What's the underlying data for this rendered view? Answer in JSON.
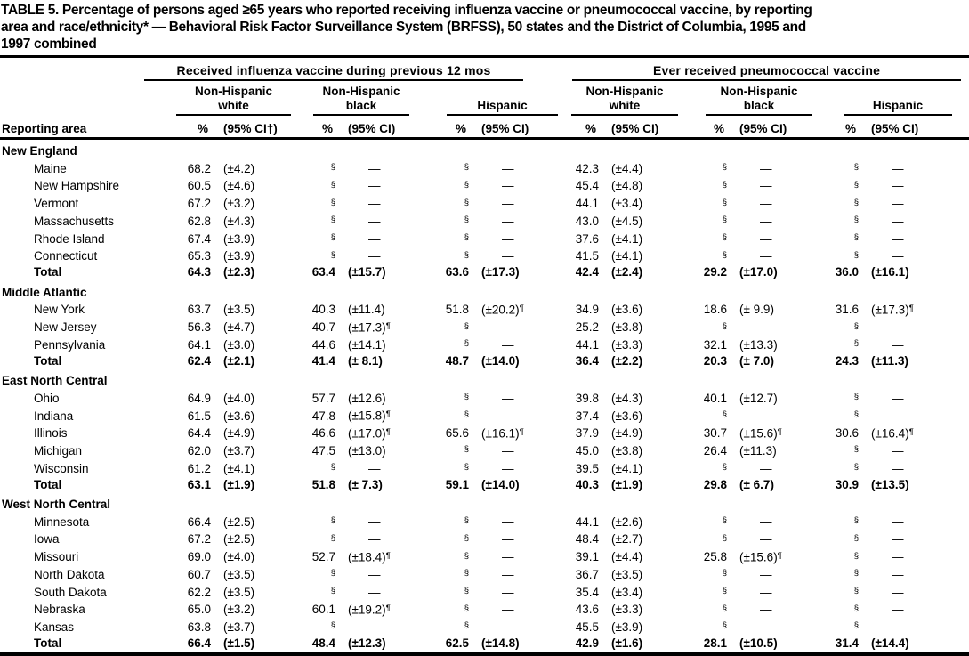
{
  "title": {
    "lines": [
      "TABLE 5. Percentage of persons aged ≥65 years who reported receiving influenza vaccine or pneumococcal vaccine, by reporting",
      "area and race/ethnicity* — Behavioral Risk Factor Surveillance System (BRFSS), 50 states and the District of Columbia, 1995 and",
      "1997 combined"
    ]
  },
  "table": {
    "row_label_header": "Reporting area",
    "pct_header": "%",
    "ci_header": "(95% CI)",
    "ci_header_first": "(95% CI†)",
    "footnote_symbols": {
      "small_sample": "§",
      "wide_ci": "¶",
      "no_data": "—"
    },
    "groups": [
      {
        "label": "Received influenza vaccine during previous 12 mos",
        "subgroups": [
          [
            "Non-Hispanic",
            "white"
          ],
          [
            "Non-Hispanic",
            "black"
          ],
          [
            "Hispanic"
          ]
        ]
      },
      {
        "label": "Ever received pneumococcal vaccine",
        "subgroups": [
          [
            "Non-Hispanic",
            "white"
          ],
          [
            "Non-Hispanic",
            "black"
          ],
          [
            "Hispanic"
          ]
        ]
      }
    ],
    "sections": [
      {
        "name": "New England",
        "rows": [
          {
            "area": "Maine",
            "cells": [
              "68.2",
              "(±4.2)",
              "§",
              "—",
              "§",
              "—",
              "42.3",
              "(±4.4)",
              "§",
              "—",
              "§",
              "—"
            ]
          },
          {
            "area": "New Hampshire",
            "cells": [
              "60.5",
              "(±4.6)",
              "§",
              "—",
              "§",
              "—",
              "45.4",
              "(±4.8)",
              "§",
              "—",
              "§",
              "—"
            ]
          },
          {
            "area": "Vermont",
            "cells": [
              "67.2",
              "(±3.2)",
              "§",
              "—",
              "§",
              "—",
              "44.1",
              "(±3.4)",
              "§",
              "—",
              "§",
              "—"
            ]
          },
          {
            "area": "Massachusetts",
            "cells": [
              "62.8",
              "(±4.3)",
              "§",
              "—",
              "§",
              "—",
              "43.0",
              "(±4.5)",
              "§",
              "—",
              "§",
              "—"
            ]
          },
          {
            "area": "Rhode Island",
            "cells": [
              "67.4",
              "(±3.9)",
              "§",
              "—",
              "§",
              "—",
              "37.6",
              "(±4.1)",
              "§",
              "—",
              "§",
              "—"
            ]
          },
          {
            "area": "Connecticut",
            "cells": [
              "65.3",
              "(±3.9)",
              "§",
              "—",
              "§",
              "—",
              "41.5",
              "(±4.1)",
              "§",
              "—",
              "§",
              "—"
            ]
          },
          {
            "area": "Total",
            "bold": true,
            "cells": [
              "64.3",
              "(±2.3)",
              "63.4",
              "(±15.7)",
              "63.6",
              "(±17.3)",
              "42.4",
              "(±2.4)",
              "29.2",
              "(±17.0)",
              "36.0",
              "(±16.1)"
            ]
          }
        ]
      },
      {
        "name": "Middle Atlantic",
        "rows": [
          {
            "area": "New York",
            "cells": [
              "63.7",
              "(±3.5)",
              "40.3",
              "(±11.4)",
              "51.8",
              "(±20.2)¶",
              "34.9",
              "(±3.6)",
              "18.6",
              "(± 9.9)",
              "31.6",
              "(±17.3)¶"
            ]
          },
          {
            "area": "New Jersey",
            "cells": [
              "56.3",
              "(±4.7)",
              "40.7",
              "(±17.3)¶",
              "§",
              "—",
              "25.2",
              "(±3.8)",
              "§",
              "—",
              "§",
              "—"
            ]
          },
          {
            "area": "Pennsylvania",
            "cells": [
              "64.1",
              "(±3.0)",
              "44.6",
              "(±14.1)",
              "§",
              "—",
              "44.1",
              "(±3.3)",
              "32.1",
              "(±13.3)",
              "§",
              "—"
            ]
          },
          {
            "area": "Total",
            "bold": true,
            "cells": [
              "62.4",
              "(±2.1)",
              "41.4",
              "(± 8.1)",
              "48.7",
              "(±14.0)",
              "36.4",
              "(±2.2)",
              "20.3",
              "(± 7.0)",
              "24.3",
              "(±11.3)"
            ]
          }
        ]
      },
      {
        "name": "East North Central",
        "rows": [
          {
            "area": "Ohio",
            "cells": [
              "64.9",
              "(±4.0)",
              "57.7",
              "(±12.6)",
              "§",
              "—",
              "39.8",
              "(±4.3)",
              "40.1",
              "(±12.7)",
              "§",
              "—"
            ]
          },
          {
            "area": "Indiana",
            "cells": [
              "61.5",
              "(±3.6)",
              "47.8",
              "(±15.8)¶",
              "§",
              "—",
              "37.4",
              "(±3.6)",
              "§",
              "—",
              "§",
              "—"
            ]
          },
          {
            "area": "Illinois",
            "cells": [
              "64.4",
              "(±4.9)",
              "46.6",
              "(±17.0)¶",
              "65.6",
              "(±16.1)¶",
              "37.9",
              "(±4.9)",
              "30.7",
              "(±15.6)¶",
              "30.6",
              "(±16.4)¶"
            ]
          },
          {
            "area": "Michigan",
            "cells": [
              "62.0",
              "(±3.7)",
              "47.5",
              "(±13.0)",
              "§",
              "—",
              "45.0",
              "(±3.8)",
              "26.4",
              "(±11.3)",
              "§",
              "—"
            ]
          },
          {
            "area": "Wisconsin",
            "cells": [
              "61.2",
              "(±4.1)",
              "§",
              "—",
              "§",
              "—",
              "39.5",
              "(±4.1)",
              "§",
              "—",
              "§",
              "—"
            ]
          },
          {
            "area": "Total",
            "bold": true,
            "cells": [
              "63.1",
              "(±1.9)",
              "51.8",
              "(± 7.3)",
              "59.1",
              "(±14.0)",
              "40.3",
              "(±1.9)",
              "29.8",
              "(± 6.7)",
              "30.9",
              "(±13.5)"
            ]
          }
        ]
      },
      {
        "name": "West North Central",
        "rows": [
          {
            "area": "Minnesota",
            "cells": [
              "66.4",
              "(±2.5)",
              "§",
              "—",
              "§",
              "—",
              "44.1",
              "(±2.6)",
              "§",
              "—",
              "§",
              "—"
            ]
          },
          {
            "area": "Iowa",
            "cells": [
              "67.2",
              "(±2.5)",
              "§",
              "—",
              "§",
              "—",
              "48.4",
              "(±2.7)",
              "§",
              "—",
              "§",
              "—"
            ]
          },
          {
            "area": "Missouri",
            "cells": [
              "69.0",
              "(±4.0)",
              "52.7",
              "(±18.4)¶",
              "§",
              "—",
              "39.1",
              "(±4.4)",
              "25.8",
              "(±15.6)¶",
              "§",
              "—"
            ]
          },
          {
            "area": "North Dakota",
            "cells": [
              "60.7",
              "(±3.5)",
              "§",
              "—",
              "§",
              "—",
              "36.7",
              "(±3.5)",
              "§",
              "—",
              "§",
              "—"
            ]
          },
          {
            "area": "South Dakota",
            "cells": [
              "62.2",
              "(±3.5)",
              "§",
              "—",
              "§",
              "—",
              "35.4",
              "(±3.4)",
              "§",
              "—",
              "§",
              "—"
            ]
          },
          {
            "area": "Nebraska",
            "cells": [
              "65.0",
              "(±3.2)",
              "60.1",
              "(±19.2)¶",
              "§",
              "—",
              "43.6",
              "(±3.3)",
              "§",
              "—",
              "§",
              "—"
            ]
          },
          {
            "area": "Kansas",
            "cells": [
              "63.8",
              "(±3.7)",
              "§",
              "—",
              "§",
              "—",
              "45.5",
              "(±3.9)",
              "§",
              "—",
              "§",
              "—"
            ]
          },
          {
            "area": "Total",
            "bold": true,
            "cells": [
              "66.4",
              "(±1.5)",
              "48.4",
              "(±12.3)",
              "62.5",
              "(±14.8)",
              "42.9",
              "(±1.6)",
              "28.1",
              "(±10.5)",
              "31.4",
              "(±14.4)"
            ]
          }
        ]
      }
    ]
  },
  "colors": {
    "text": "#000000",
    "background": "#ffffff"
  }
}
